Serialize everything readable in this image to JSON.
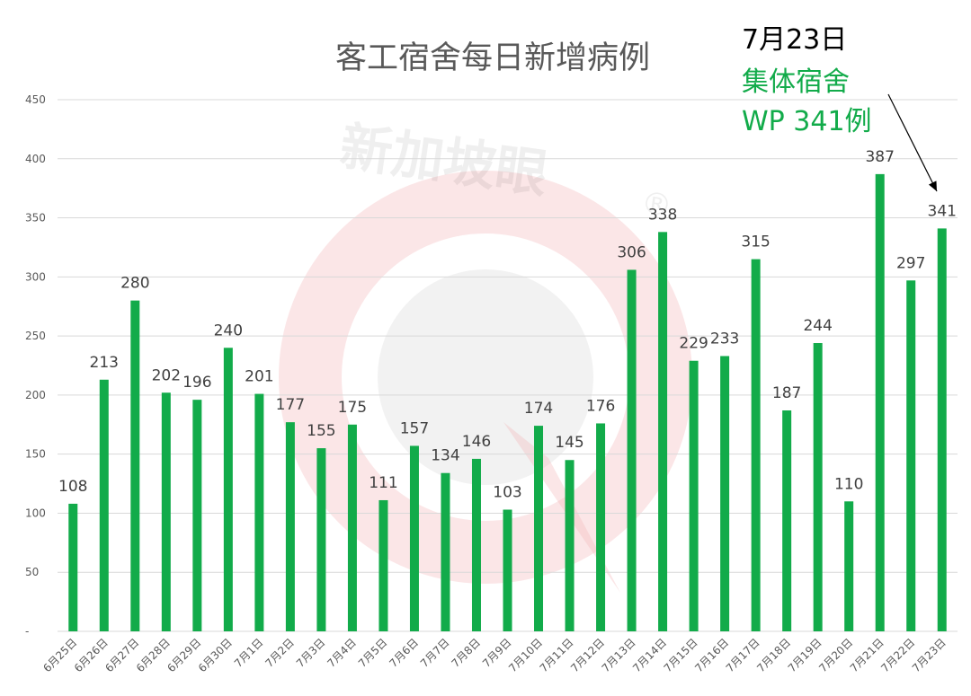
{
  "chart_data": {
    "type": "bar",
    "title": "客工宿舍每日新增病例",
    "categories": [
      "6月25日",
      "6月26日",
      "6月27日",
      "6月28日",
      "6月29日",
      "6月30日",
      "7月1日",
      "7月2日",
      "7月3日",
      "7月4日",
      "7月5日",
      "7月6日",
      "7月7日",
      "7月8日",
      "7月9日",
      "7月10日",
      "7月11日",
      "7月12日",
      "7月13日",
      "7月14日",
      "7月15日",
      "7月16日",
      "7月17日",
      "7月18日",
      "7月19日",
      "7月20日",
      "7月21日",
      "7月22日",
      "7月23日"
    ],
    "values": [
      108,
      213,
      280,
      202,
      196,
      240,
      201,
      177,
      155,
      175,
      111,
      157,
      134,
      146,
      103,
      174,
      145,
      176,
      306,
      338,
      229,
      233,
      315,
      187,
      244,
      110,
      387,
      297,
      341
    ],
    "ylim": [
      0,
      450
    ],
    "yticks": [
      "-",
      "50",
      "100",
      "150",
      "200",
      "250",
      "300",
      "350",
      "400",
      "450"
    ],
    "grid": true,
    "xlabel": "",
    "ylabel": "",
    "colors": {
      "bar": "#12ab4a",
      "grid": "#d9d9d9"
    },
    "annotation": {
      "date": "7月23日",
      "line1": "集体宿舍",
      "line2": "WP 341例",
      "color": "#12ab4a",
      "target_category": "7月23日"
    }
  },
  "watermark": {
    "text": "新加坡眼",
    "mark": "®"
  }
}
